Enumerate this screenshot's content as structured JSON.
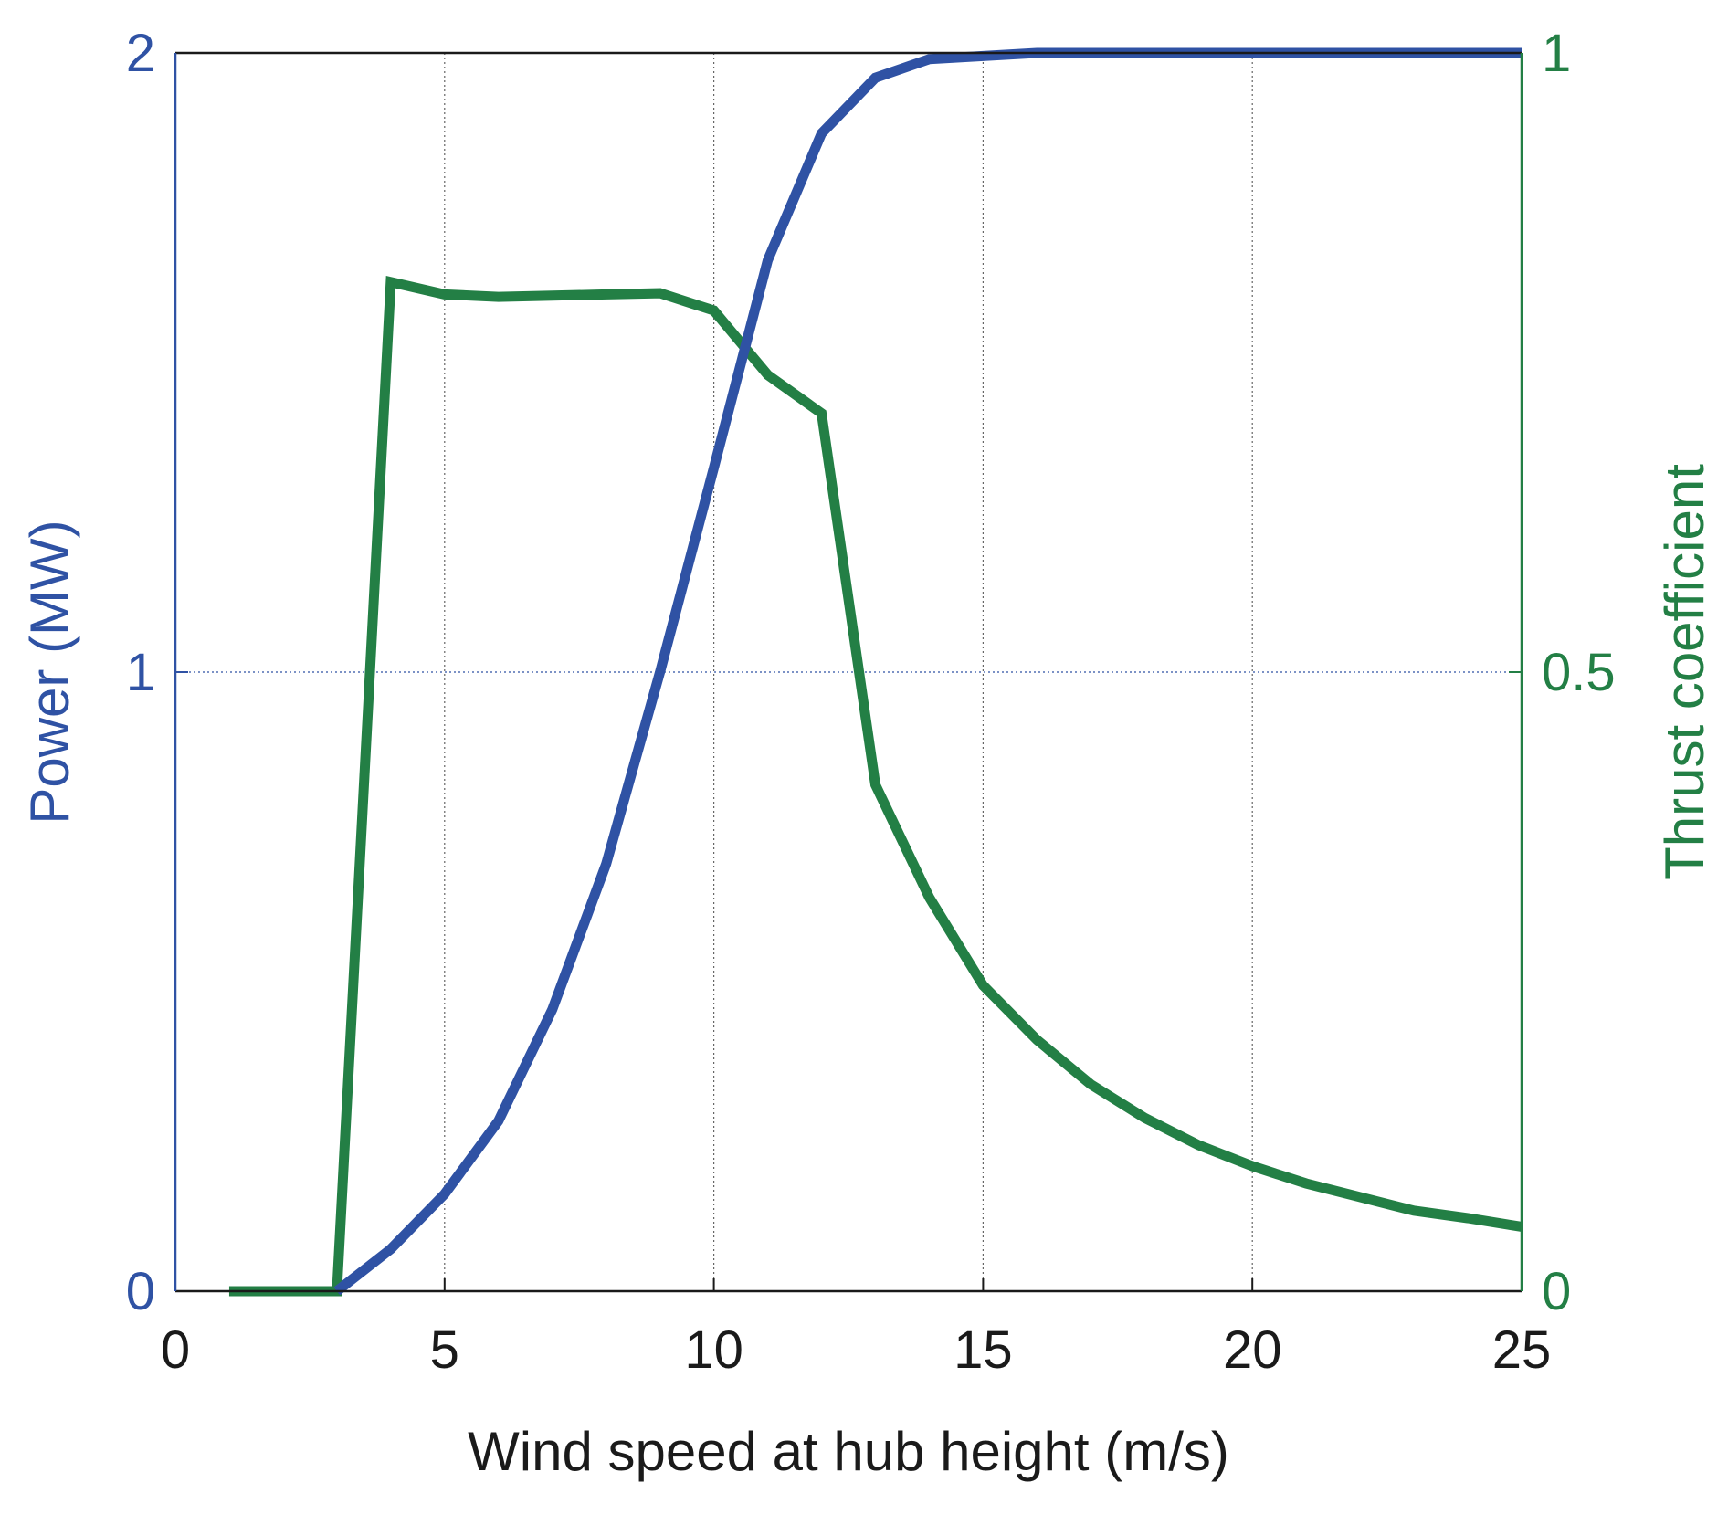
{
  "chart_data": {
    "type": "line",
    "title": "",
    "xlabel": "Wind speed at hub height (m/s)",
    "ylabel_left": "Power (MW)",
    "ylabel_right": "Thrust coefficient",
    "xlim": [
      0,
      25
    ],
    "ylim_left": [
      0,
      2
    ],
    "ylim_right": [
      0,
      1
    ],
    "x_ticks": [
      "0",
      "5",
      "10",
      "15",
      "20",
      "25"
    ],
    "y_ticks_left": [
      "0",
      "1",
      "2"
    ],
    "y_ticks_right": [
      "0",
      "0.5",
      "1"
    ],
    "grid": true,
    "colors": {
      "power": "#2f52a4",
      "thrust": "#237f45",
      "axis": "#1a1a1a",
      "grid": "#666666"
    },
    "series": [
      {
        "axis": "left",
        "x": [
          3,
          4,
          5,
          6,
          7,
          8,
          9,
          10,
          11,
          12,
          13,
          14,
          15,
          16,
          17,
          18,
          19,
          20,
          21,
          22,
          23,
          24,
          25
        ],
        "values": [
          0,
          0.068,
          0.157,
          0.275,
          0.455,
          0.69,
          1.0,
          1.33,
          1.665,
          1.87,
          1.96,
          1.99,
          1.995,
          2.0,
          2.0,
          2.0,
          2.0,
          2.0,
          2.0,
          2.0,
          2.0,
          2.0,
          2.0
        ]
      },
      {
        "axis": "right",
        "x": [
          1,
          2,
          3,
          4,
          5,
          6,
          7,
          8,
          9,
          10,
          11,
          12,
          13,
          14,
          15,
          16,
          17,
          18,
          19,
          20,
          21,
          22,
          23,
          24,
          25
        ],
        "values": [
          0,
          0,
          0,
          0.815,
          0.805,
          0.803,
          0.804,
          0.805,
          0.806,
          0.792,
          0.74,
          0.709,
          0.409,
          0.318,
          0.247,
          0.203,
          0.167,
          0.14,
          0.118,
          0.101,
          0.087,
          0.076,
          0.065,
          0.059,
          0.052
        ]
      }
    ]
  }
}
